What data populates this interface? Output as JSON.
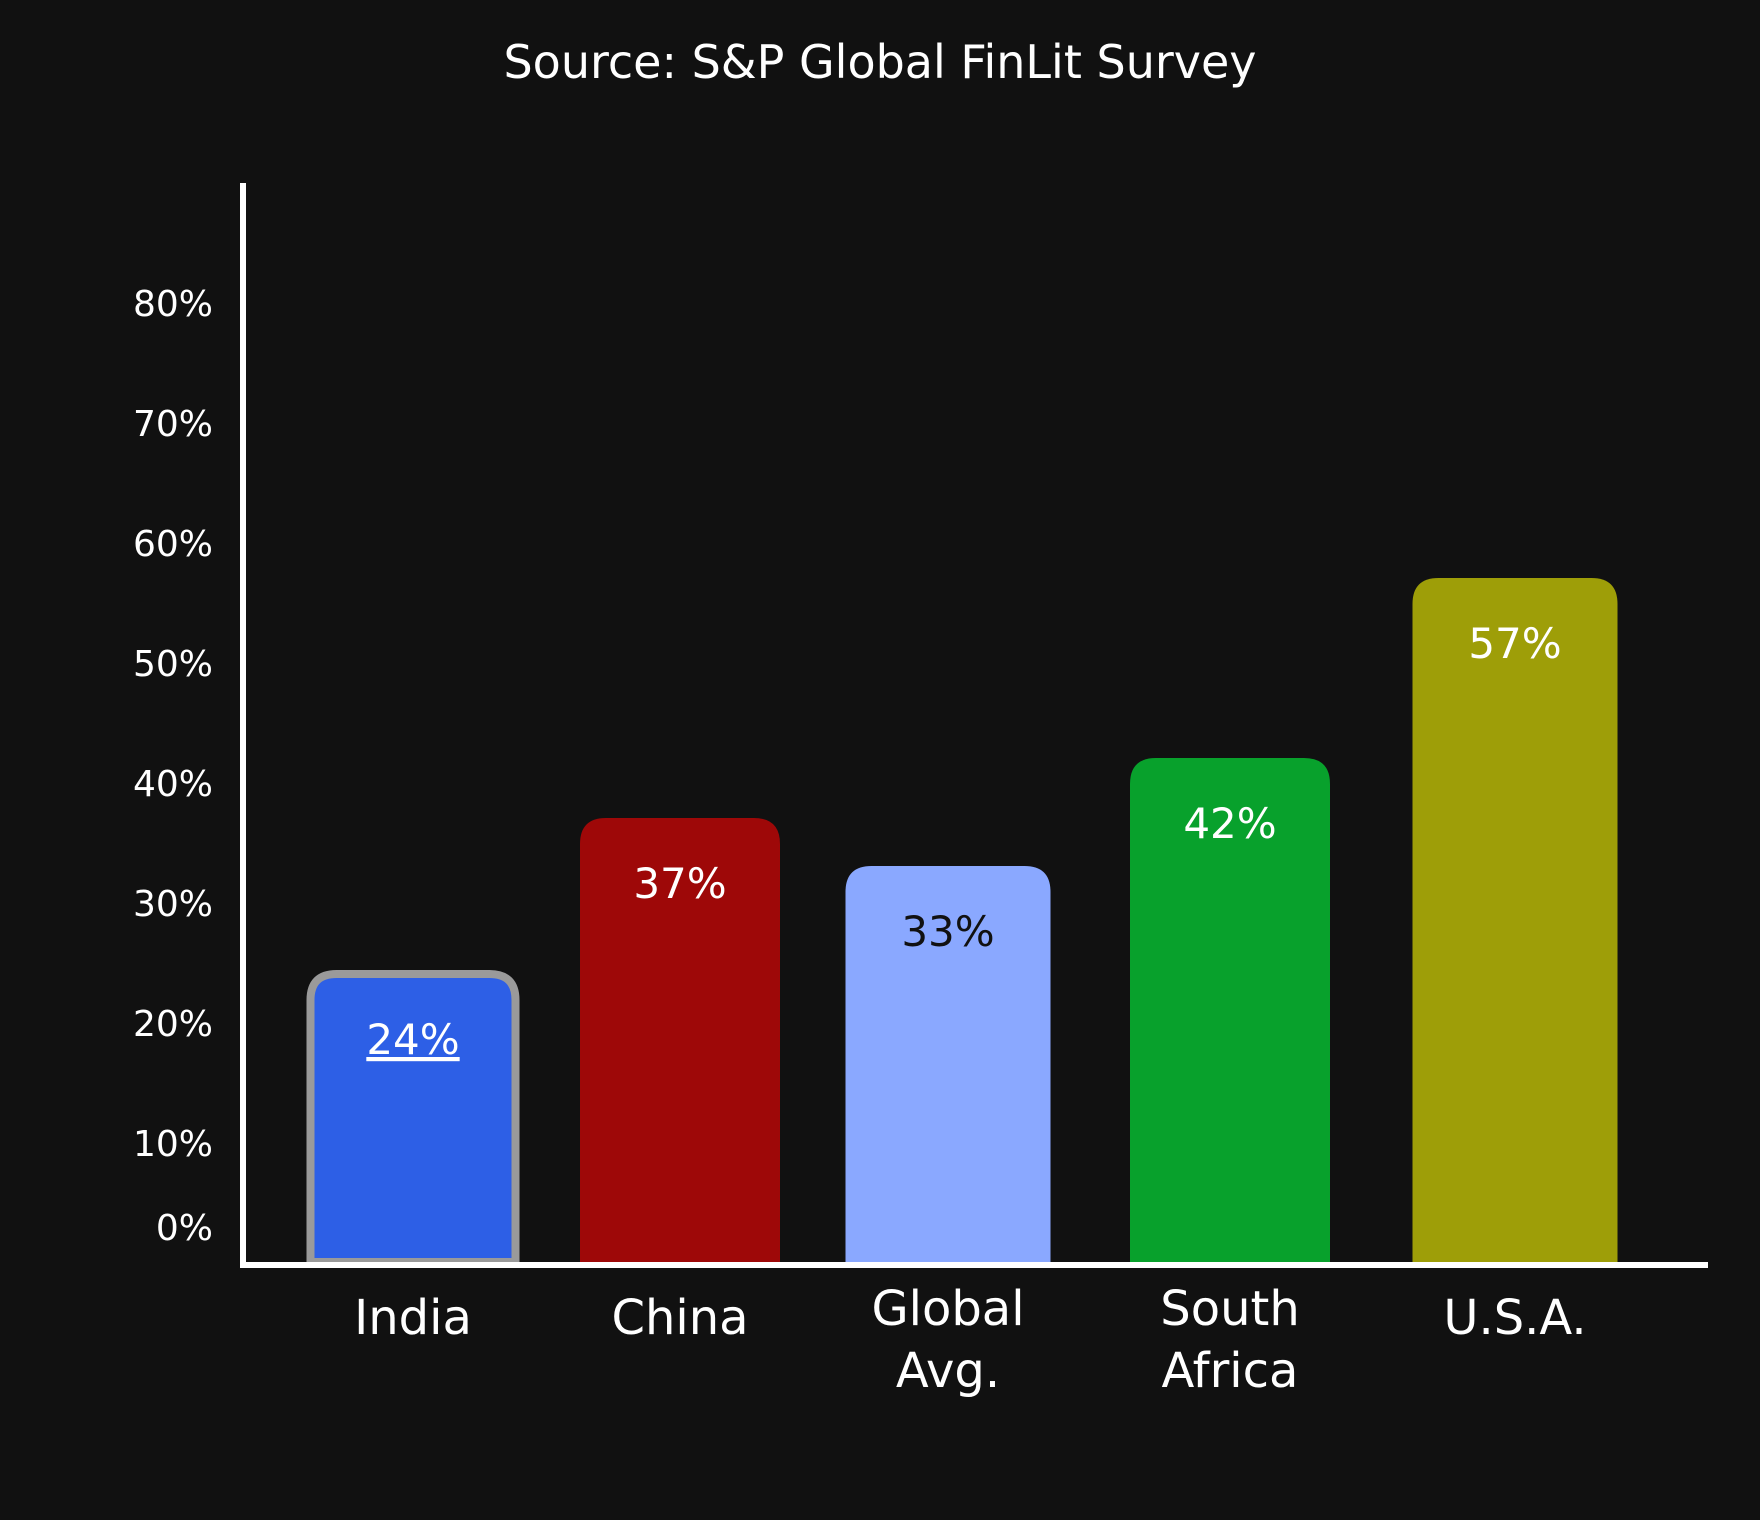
{
  "chart_data": {
    "type": "bar",
    "title": "Source: S&P Global FinLit Survey",
    "xlabel": "",
    "ylabel": "",
    "ylim": [
      0,
      80
    ],
    "yticks": [
      0,
      10,
      20,
      30,
      40,
      50,
      60,
      70,
      80
    ],
    "ytick_labels": [
      "0%",
      "10%",
      "20%",
      "30%",
      "40%",
      "50%",
      "60%",
      "70%",
      "80%"
    ],
    "categories": [
      [
        "India"
      ],
      [
        "China"
      ],
      [
        "Global",
        "Avg."
      ],
      [
        "South",
        "Africa"
      ],
      [
        "U.S.A."
      ]
    ],
    "values": [
      24,
      37,
      33,
      42,
      57
    ],
    "data_labels": [
      "24%",
      "37%",
      "33%",
      "42%",
      "57%"
    ],
    "colors": [
      "#2d5fe6",
      "#9e0808",
      "#8aa8ff",
      "#08a12c",
      "#9e9e08"
    ],
    "label_colors": [
      "#ffffff",
      "#ffffff",
      "#111111",
      "#ffffff",
      "#ffffff"
    ],
    "highlighted": "India",
    "highlight_border_color": "#9a9a9a",
    "grid": false,
    "legend": "none",
    "background": "#111111",
    "axis_color": "#ffffff"
  }
}
